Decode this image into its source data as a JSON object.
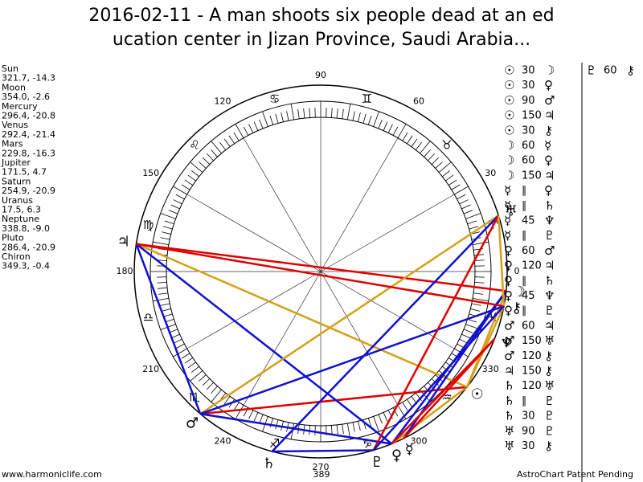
{
  "title": [
    "2016-02-11 - A man shoots six people dead at an ed",
    "ucation center in Jizan Province, Saudi Arabia..."
  ],
  "planets": [
    {
      "name": "Sun",
      "position": "321.7, -14.3",
      "glyph": "☉"
    },
    {
      "name": "Moon",
      "position": "354.0, -2.6",
      "glyph": "☽"
    },
    {
      "name": "Mercury",
      "position": "296.4, -20.8",
      "glyph": "☿"
    },
    {
      "name": "Venus",
      "position": "292.4, -21.4",
      "glyph": "♀"
    },
    {
      "name": "Mars",
      "position": "229.8, -16.3",
      "glyph": "♂"
    },
    {
      "name": "Jupiter",
      "position": "171.5, 4.7",
      "glyph": "♃"
    },
    {
      "name": "Saturn",
      "position": "254.9, -20.9",
      "glyph": "♄"
    },
    {
      "name": "Uranus",
      "position": "17.5, 6.3",
      "glyph": "♅"
    },
    {
      "name": "Neptune",
      "position": "338.8, -9.0",
      "glyph": "♆"
    },
    {
      "name": "Pluto",
      "position": "286.4, -20.9",
      "glyph": "♇"
    },
    {
      "name": "Chiron",
      "position": "349.3, -0.4",
      "glyph": "⚷"
    }
  ],
  "degree_labels": [
    0,
    30,
    60,
    90,
    120,
    150,
    180,
    210,
    240,
    270,
    300,
    330
  ],
  "signs": [
    "♈",
    "♉",
    "♊",
    "♋",
    "♌",
    "♍",
    "♎",
    "♏",
    "♐",
    "♑",
    "♒",
    "♓"
  ],
  "aspects": [
    {
      "a": "☉",
      "aspect": 30,
      "b": "☽",
      "color": "#d4a017"
    },
    {
      "a": "☉",
      "aspect": 30,
      "b": "♀",
      "color": "#d4a017"
    },
    {
      "a": "☉",
      "aspect": 90,
      "b": "♂",
      "color": "#e00000"
    },
    {
      "a": "☉",
      "aspect": 150,
      "b": "♃",
      "color": "#d4a017"
    },
    {
      "a": "☉",
      "aspect": 30,
      "b": "⚷",
      "color": "#d4a017"
    },
    {
      "a": "☽",
      "aspect": 60,
      "b": "☿",
      "color": "#1010d0"
    },
    {
      "a": "☽",
      "aspect": 60,
      "b": "♀",
      "color": "#1010d0"
    },
    {
      "a": "☽",
      "aspect": 150,
      "b": "♃",
      "color": "#e00000"
    },
    {
      "a": "☿",
      "aspect": "∥",
      "b": "♀"
    },
    {
      "a": "☿",
      "aspect": "∥",
      "b": "♄"
    },
    {
      "a": "☿",
      "aspect": 45,
      "b": "♆",
      "color": "#e00000"
    },
    {
      "a": "☿",
      "aspect": "∥",
      "b": "♇"
    },
    {
      "a": "♀",
      "aspect": 60,
      "b": "♂",
      "color": "#1010d0"
    },
    {
      "a": "♀",
      "aspect": 120,
      "b": "♃",
      "color": "#1010d0"
    },
    {
      "a": "♀",
      "aspect": "∥",
      "b": "♄"
    },
    {
      "a": "♀",
      "aspect": 45,
      "b": "♆",
      "color": "#e00000"
    },
    {
      "a": "♀",
      "aspect": "∥",
      "b": "♇"
    },
    {
      "a": "♂",
      "aspect": 60,
      "b": "♃",
      "color": "#1010d0"
    },
    {
      "a": "♂",
      "aspect": 150,
      "b": "♅",
      "color": "#d4a017"
    },
    {
      "a": "♂",
      "aspect": 120,
      "b": "⚷",
      "color": "#1010d0"
    },
    {
      "a": "♃",
      "aspect": 150,
      "b": "⚷",
      "color": "#e00000"
    },
    {
      "a": "♄",
      "aspect": 120,
      "b": "♅",
      "color": "#1010d0"
    },
    {
      "a": "♄",
      "aspect": "∥",
      "b": "♇"
    },
    {
      "a": "♄",
      "aspect": 30,
      "b": "♇",
      "color": "#1010d0"
    },
    {
      "a": "♅",
      "aspect": 90,
      "b": "♇",
      "color": "#e00000"
    },
    {
      "a": "♅",
      "aspect": 30,
      "b": "⚷",
      "color": "#d4a017"
    }
  ],
  "aspects_column2": [
    {
      "a": "♇",
      "aspect": 60,
      "b": "⚷",
      "color": "#1010d0"
    }
  ],
  "footer": {
    "left": "www.harmoniclife.com",
    "center": "389",
    "right": "AstroChart Patent Pending"
  }
}
